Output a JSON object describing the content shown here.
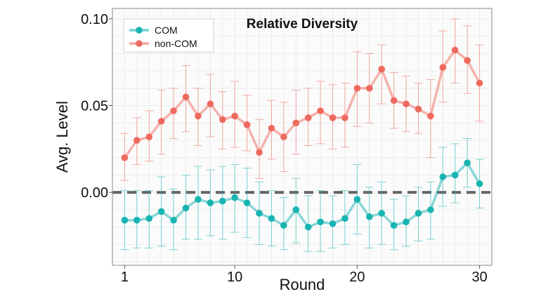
{
  "chart_data": {
    "type": "line",
    "title": "Relative Diversity",
    "xlabel": "Round",
    "ylabel": "Avg. Level",
    "xlim": [
      0,
      31
    ],
    "ylim": [
      -0.042,
      0.106
    ],
    "x_ticks": [
      1,
      10,
      20,
      30
    ],
    "x_tick_labels": [
      "1",
      "10",
      "20",
      "30"
    ],
    "y_ticks": [
      0.0,
      0.05,
      0.1
    ],
    "y_tick_labels": [
      "0.00",
      "0.05",
      "0.10"
    ],
    "grid": true,
    "reference_line": {
      "y": 0.0,
      "style": "dashed",
      "color": "#666666"
    },
    "legend_position": "top-left",
    "x": [
      1,
      2,
      3,
      4,
      5,
      6,
      7,
      8,
      9,
      10,
      11,
      12,
      13,
      14,
      15,
      16,
      17,
      18,
      19,
      20,
      21,
      22,
      23,
      24,
      25,
      26,
      27,
      28,
      29,
      30
    ],
    "series": [
      {
        "name": "COM",
        "color": "#18b4b2",
        "values": [
          -0.016,
          -0.016,
          -0.015,
          -0.011,
          -0.016,
          -0.009,
          -0.004,
          -0.006,
          -0.005,
          -0.003,
          -0.006,
          -0.012,
          -0.015,
          -0.019,
          -0.01,
          -0.02,
          -0.017,
          -0.018,
          -0.015,
          -0.004,
          -0.014,
          -0.012,
          -0.019,
          -0.017,
          -0.012,
          -0.01,
          0.009,
          0.01,
          0.017,
          0.005
        ],
        "error_low": [
          -0.033,
          -0.032,
          -0.032,
          -0.031,
          -0.033,
          -0.027,
          -0.027,
          -0.025,
          -0.027,
          -0.023,
          -0.026,
          -0.03,
          -0.031,
          -0.033,
          -0.029,
          -0.034,
          -0.034,
          -0.032,
          -0.03,
          -0.024,
          -0.032,
          -0.03,
          -0.033,
          -0.031,
          -0.028,
          -0.027,
          -0.008,
          -0.006,
          0.003,
          -0.009
        ],
        "error_high": [
          0.001,
          0.001,
          0.001,
          0.009,
          0.002,
          0.01,
          0.015,
          0.013,
          0.015,
          0.016,
          0.014,
          0.006,
          0.001,
          -0.003,
          0.008,
          -0.002,
          0.001,
          -0.002,
          0.001,
          0.016,
          0.003,
          0.006,
          -0.004,
          -0.002,
          0.003,
          0.006,
          0.026,
          0.028,
          0.031,
          0.019
        ]
      },
      {
        "name": "non-COM",
        "color": "#ee6a5e",
        "values": [
          0.02,
          0.03,
          0.032,
          0.041,
          0.047,
          0.055,
          0.044,
          0.051,
          0.042,
          0.044,
          0.039,
          0.023,
          0.037,
          0.032,
          0.04,
          0.043,
          0.047,
          0.043,
          0.043,
          0.06,
          0.06,
          0.071,
          0.053,
          0.051,
          0.048,
          0.044,
          0.072,
          0.082,
          0.076,
          0.063
        ],
        "error_low": [
          0.007,
          0.016,
          0.018,
          0.022,
          0.031,
          0.035,
          0.027,
          0.032,
          0.025,
          0.026,
          0.024,
          0.008,
          0.019,
          0.012,
          0.022,
          0.027,
          0.028,
          0.025,
          0.026,
          0.038,
          0.04,
          0.051,
          0.037,
          0.035,
          0.034,
          0.02,
          0.052,
          0.063,
          0.057,
          0.041
        ],
        "error_high": [
          0.034,
          0.043,
          0.047,
          0.059,
          0.06,
          0.073,
          0.06,
          0.068,
          0.058,
          0.064,
          0.056,
          0.042,
          0.053,
          0.052,
          0.059,
          0.06,
          0.064,
          0.062,
          0.063,
          0.081,
          0.08,
          0.085,
          0.069,
          0.067,
          0.063,
          0.065,
          0.093,
          0.1,
          0.096,
          0.085
        ]
      }
    ]
  }
}
